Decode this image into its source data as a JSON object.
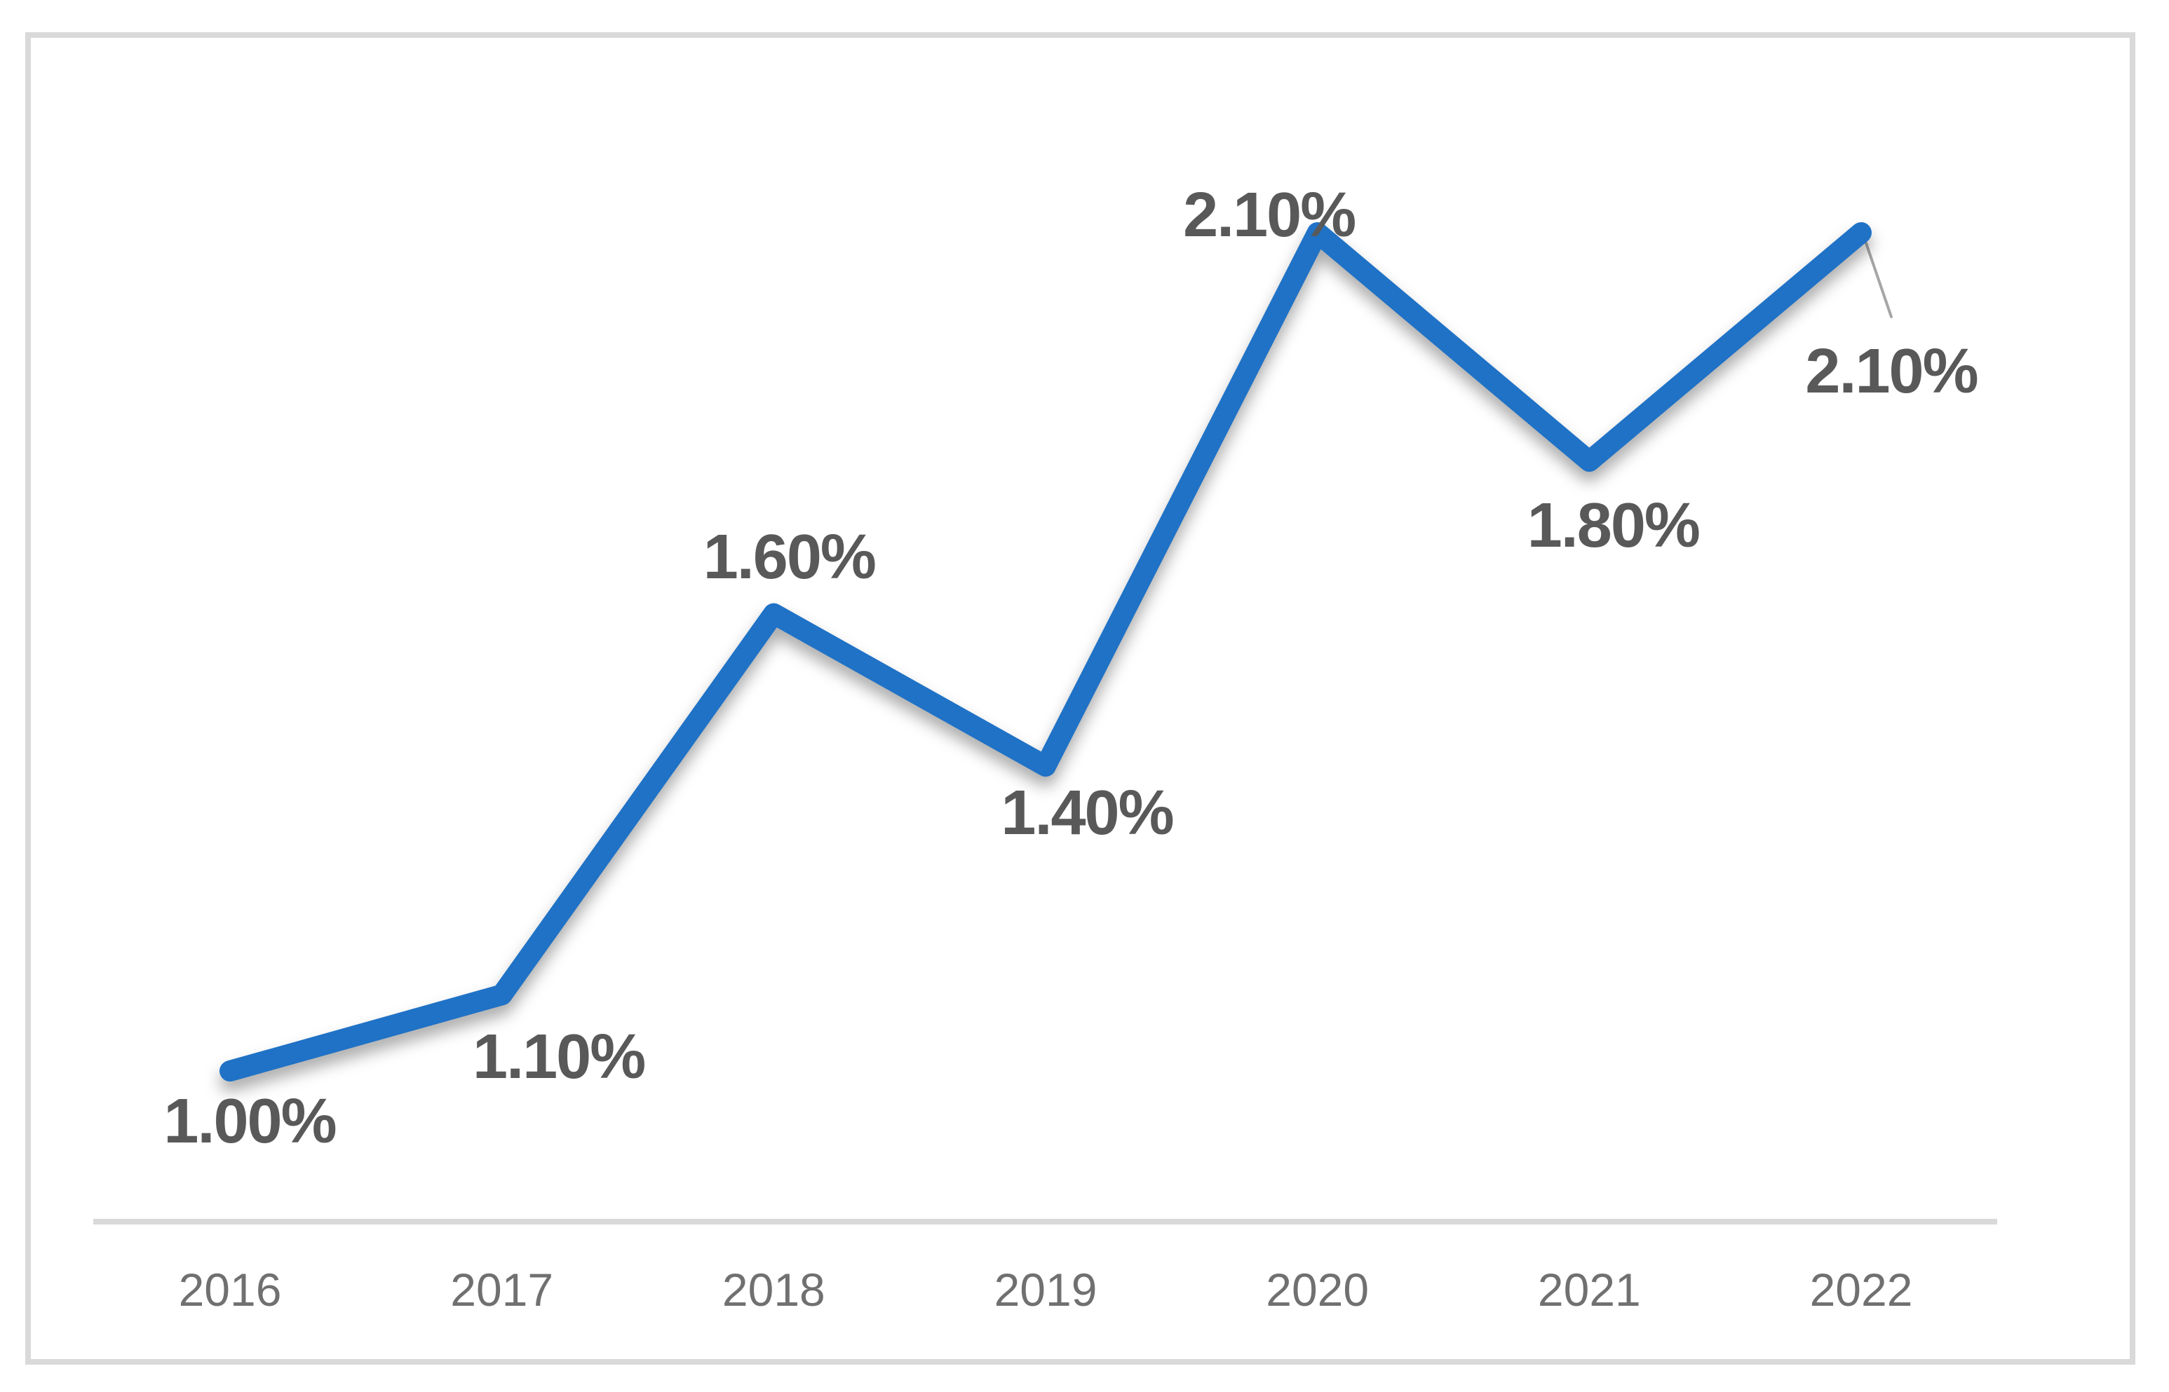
{
  "chart_data": {
    "type": "line",
    "title": "",
    "xlabel": "",
    "ylabel": "",
    "categories": [
      "2016",
      "2017",
      "2018",
      "2019",
      "2020",
      "2021",
      "2022"
    ],
    "series": [
      {
        "name": "",
        "values": [
          1.0,
          1.1,
          1.6,
          1.4,
          2.1,
          1.8,
          2.1
        ]
      }
    ],
    "data_labels": [
      "1.00%",
      "1.10%",
      "1.60%",
      "1.40%",
      "2.10%",
      "1.80%",
      "2.10%"
    ],
    "ylim": [
      0.8,
      2.3
    ],
    "grid": false,
    "legend": false,
    "x_axis_line": true,
    "y_axis_line": false,
    "markers": "none",
    "last_point_has_leader_line": true
  },
  "colors": {
    "line": "#1F72C6",
    "data_label": "#595959",
    "axis_label": "#707070",
    "axis_line": "#D9D9D9",
    "frame_border": "#D9D9D9",
    "leader_line": "#A6A6A6",
    "background": "#FFFFFF"
  }
}
